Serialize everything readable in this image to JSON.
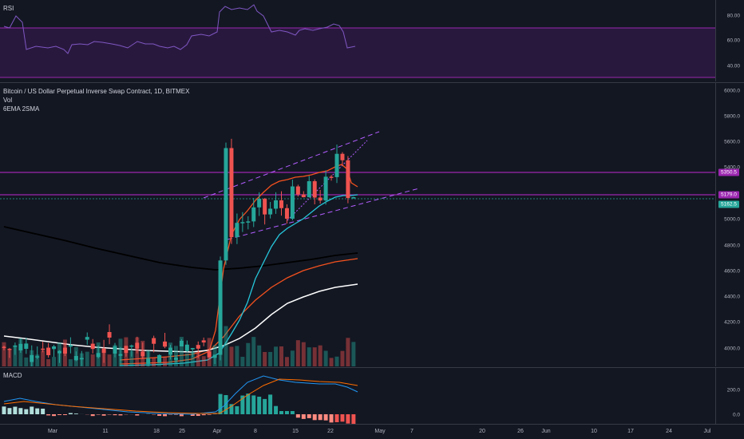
{
  "rsi": {
    "title": "RSI",
    "ticks": [
      "80.00",
      "60.00",
      "40.00"
    ]
  },
  "main": {
    "title": "Bitcoin / US Dollar Perpetual Inverse Swap Contract, 1D, BITMEX",
    "vol_label": "Vol",
    "ma_label": "6EMA 2SMA",
    "ticks": [
      "6000.0",
      "5800.0",
      "5600.0",
      "5400.0",
      "4800.0",
      "4600.0",
      "4400.0",
      "4200.0",
      "4000.0"
    ],
    "tick_5000": "5000.0",
    "tags": {
      "resistance": "5350.5",
      "support": "5179.0",
      "last": "5162.5"
    },
    "tag_colors": {
      "resistance": "#9c27b0",
      "support": "#9c27b0",
      "last": "#26a69a"
    }
  },
  "macd": {
    "title": "MACD",
    "ticks": [
      "200.0",
      "0.0"
    ]
  },
  "xaxis": {
    "labels": [
      "Mar",
      "11",
      "18",
      "25",
      "Apr",
      "8",
      "15",
      "22",
      "May",
      "7",
      "20",
      "26",
      "Jun",
      "10",
      "17",
      "24",
      "Jul"
    ]
  },
  "colors": {
    "up": "#26a69a",
    "down": "#ef5350",
    "purple": "#9c27b0",
    "bg": "#131722"
  }
}
